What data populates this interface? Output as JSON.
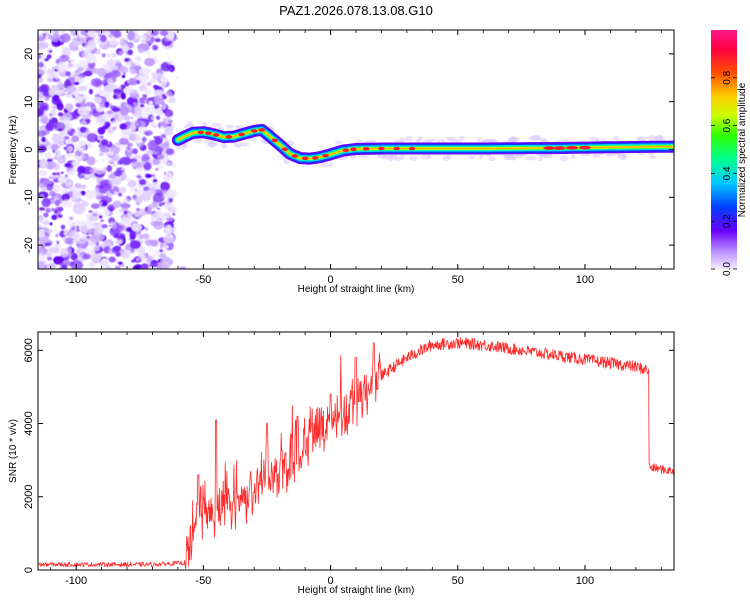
{
  "title": "PAZ1.2026.078.13.08.G10",
  "chart_data": [
    {
      "type": "heatmap",
      "name": "spectrogram",
      "xlabel": "Height of straight line (km)",
      "ylabel": "Frequency (Hz)",
      "xlim": [
        -115,
        135
      ],
      "ylim": [
        -25,
        25
      ],
      "xticks": [
        -100,
        -50,
        0,
        50,
        100
      ],
      "yticks": [
        -20,
        -10,
        0,
        10,
        20
      ],
      "ridge": {
        "x": [
          -60,
          -57,
          -54,
          -50,
          -46,
          -42,
          -38,
          -34,
          -30,
          -27,
          -24,
          -20,
          -16,
          -12,
          -8,
          -4,
          0,
          5,
          10,
          20,
          40,
          60,
          80,
          90,
          100,
          115,
          135
        ],
        "f": [
          2.0,
          2.8,
          3.5,
          3.6,
          3.2,
          2.6,
          2.7,
          3.3,
          3.9,
          4.1,
          2.8,
          1.0,
          -0.9,
          -1.8,
          -1.9,
          -1.6,
          -1.0,
          -0.2,
          0.1,
          0.2,
          0.2,
          0.2,
          0.3,
          0.3,
          0.4,
          0.5,
          0.6
        ]
      },
      "colorbar": {
        "label": "Normalized spectral amplitude",
        "range": [
          0,
          1
        ],
        "ticks": [
          0.0,
          0.2,
          0.4,
          0.6,
          0.8
        ],
        "tick_labels": [
          "0.0",
          "0.2",
          "0.4",
          "0.6",
          "0.8"
        ]
      }
    },
    {
      "type": "line",
      "name": "snr",
      "xlabel": "Height of straight line (km)",
      "ylabel": "SNR (10 * v/v)",
      "xlim": [
        -115,
        135
      ],
      "ylim": [
        0,
        6500
      ],
      "xticks": [
        -100,
        -50,
        0,
        50,
        100
      ],
      "yticks": [
        0,
        2000,
        4000,
        6000
      ],
      "color": "#ff2a2a",
      "envelope": {
        "x": [
          -115,
          -90,
          -70,
          -57,
          -55,
          -52,
          -50,
          -45,
          -40,
          -35,
          -30,
          -25,
          -20,
          -15,
          -10,
          -5,
          0,
          10,
          20,
          30,
          40,
          50,
          60,
          70,
          80,
          90,
          100,
          110,
          120,
          125,
          125.5,
          135
        ],
        "y": [
          150,
          150,
          150,
          200,
          700,
          1800,
          1600,
          1500,
          1700,
          1900,
          2200,
          2500,
          2800,
          3100,
          3400,
          3700,
          4000,
          4700,
          5300,
          5800,
          6150,
          6200,
          6150,
          6050,
          5950,
          5850,
          5750,
          5650,
          5550,
          5450,
          2800,
          2700
        ]
      },
      "spikes": [
        {
          "x": -45,
          "y": 4100
        },
        {
          "x": -52,
          "y": 2600
        },
        {
          "x": -25,
          "y": 4000
        },
        {
          "x": -13,
          "y": 4200
        },
        {
          "x": 0,
          "y": 4800
        },
        {
          "x": 10,
          "y": 5800
        },
        {
          "x": 17,
          "y": 6200
        }
      ]
    }
  ]
}
